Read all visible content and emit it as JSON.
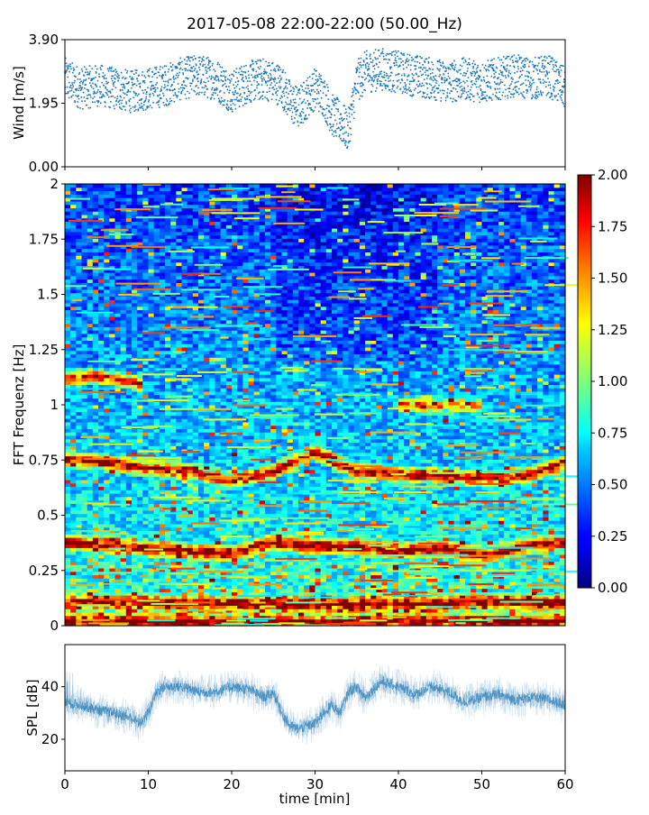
{
  "title": "2017-05-08 22:00-22:00 (50.00_Hz)",
  "chart_data": [
    {
      "type": "scatter",
      "panel": "wind",
      "xlabel": "",
      "ylabel": "Wind [m/s]",
      "xlim": [
        0,
        60
      ],
      "ylim": [
        0,
        3.9
      ],
      "yticks": [
        0,
        1.95,
        3.9
      ],
      "ytick_labels": [
        "0.00",
        "1.95",
        "3.90"
      ],
      "xticks": [
        0,
        10,
        20,
        30,
        40,
        50,
        60
      ],
      "color": "#1f77b4",
      "trend": {
        "x": [
          0,
          2,
          4,
          6,
          8,
          10,
          12,
          14,
          16,
          18,
          20,
          22,
          24,
          26,
          27,
          28,
          29,
          30,
          31,
          32,
          33,
          34,
          35,
          36,
          38,
          40,
          42,
          44,
          46,
          48,
          50,
          52,
          54,
          56,
          58,
          60
        ],
        "y": [
          2.7,
          2.4,
          2.5,
          2.4,
          2.3,
          2.4,
          2.5,
          2.7,
          2.8,
          2.7,
          2.3,
          2.6,
          2.7,
          2.5,
          2.0,
          1.8,
          2.1,
          2.4,
          2.2,
          1.6,
          1.4,
          1.1,
          2.6,
          2.9,
          3.0,
          2.9,
          2.8,
          2.7,
          2.6,
          2.7,
          2.6,
          2.7,
          2.8,
          2.7,
          2.8,
          2.4
        ]
      }
    },
    {
      "type": "heatmap",
      "panel": "spectrogram",
      "xlabel": "",
      "ylabel": "FFT Frequenz [Hz]",
      "xlim": [
        0,
        60
      ],
      "ylim": [
        0,
        2
      ],
      "yticks": [
        0,
        0.25,
        0.5,
        0.75,
        1,
        1.25,
        1.5,
        1.75,
        2
      ],
      "ytick_labels": [
        "0",
        "0.25",
        "0.5",
        "0.75",
        "1",
        "1.25",
        "1.5",
        "1.75",
        "2"
      ],
      "colormap": "jet",
      "colorbar": {
        "range": [
          0,
          2
        ],
        "ticks": [
          0,
          0.25,
          0.5,
          0.75,
          1,
          1.25,
          1.5,
          1.75,
          2
        ],
        "tick_labels": [
          "0.00",
          "0.25",
          "0.50",
          "0.75",
          "1.00",
          "1.25",
          "1.50",
          "1.75",
          "2.00"
        ]
      },
      "bands": [
        {
          "x": [
            0,
            5,
            10,
            15,
            20,
            25,
            30,
            35,
            40,
            45,
            50,
            55,
            60
          ],
          "y": [
            0.76,
            0.74,
            0.72,
            0.7,
            0.66,
            0.7,
            0.79,
            0.7,
            0.69,
            0.68,
            0.67,
            0.68,
            0.74
          ],
          "strength": 1.7
        },
        {
          "x": [
            0,
            5,
            10,
            15,
            20,
            25,
            30,
            35,
            40,
            45,
            50,
            55,
            60
          ],
          "y": [
            0.38,
            0.37,
            0.35,
            0.34,
            0.33,
            0.38,
            0.36,
            0.36,
            0.34,
            0.35,
            0.32,
            0.36,
            0.38
          ],
          "strength": 1.7
        },
        {
          "x": [
            0,
            30,
            60
          ],
          "y": [
            0.11,
            0.1,
            0.11
          ],
          "strength": 1.6
        },
        {
          "x": [
            0,
            30,
            60
          ],
          "y": [
            0.02,
            0.02,
            0.02
          ],
          "strength": 1.6
        },
        {
          "x": [
            0,
            3,
            6,
            9
          ],
          "y": [
            1.12,
            1.13,
            1.12,
            1.1
          ],
          "strength": 1.5
        },
        {
          "x": [
            40,
            45,
            50
          ],
          "y": [
            1.0,
            1.0,
            1.0
          ],
          "strength": 1.2
        }
      ]
    },
    {
      "type": "area",
      "panel": "spl",
      "xlabel": "time [min]",
      "ylabel": "SPL [dB]",
      "xlim": [
        0,
        60
      ],
      "ylim": [
        8,
        56
      ],
      "yticks": [
        20,
        40
      ],
      "ytick_labels": [
        "20",
        "40"
      ],
      "xticks": [
        0,
        10,
        20,
        30,
        40,
        50,
        60
      ],
      "xtick_labels": [
        "0",
        "10",
        "20",
        "30",
        "40",
        "50",
        "60"
      ],
      "color": "#1f77b4",
      "trend": {
        "x": [
          0,
          2,
          4,
          6,
          8,
          9,
          10,
          11,
          12,
          14,
          16,
          18,
          20,
          22,
          24,
          25,
          26,
          27,
          28,
          29,
          30,
          31,
          32,
          33,
          34,
          35,
          36,
          38,
          40,
          42,
          44,
          46,
          48,
          50,
          52,
          54,
          56,
          58,
          60
        ],
        "y": [
          34,
          33,
          31,
          30,
          28,
          26,
          30,
          38,
          40,
          40,
          38,
          38,
          40,
          39,
          36,
          38,
          30,
          25,
          24,
          25,
          26,
          30,
          33,
          30,
          38,
          40,
          36,
          42,
          40,
          37,
          40,
          38,
          34,
          36,
          37,
          35,
          36,
          35,
          33
        ]
      }
    }
  ]
}
